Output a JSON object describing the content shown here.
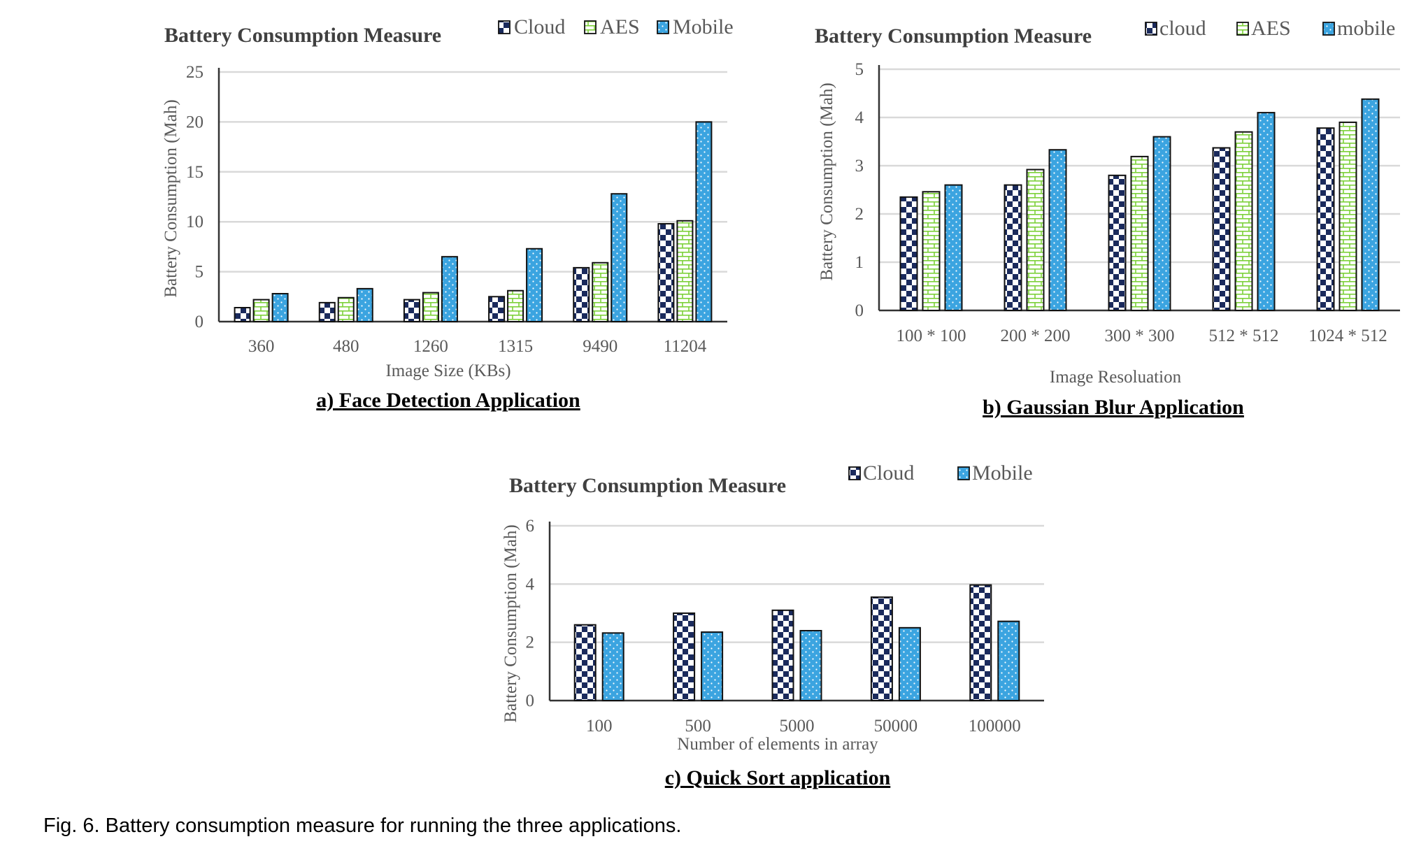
{
  "caption": "Fig. 6. Battery consumption measure for running the three applications.",
  "colors": {
    "cloud": "#1a2a5c",
    "aes": "#7dd13a",
    "mobile": "#3ba4e0",
    "grid": "#d9d9d9",
    "axis": "#333333",
    "text": "#595959",
    "title": "#404040"
  },
  "chart_data": [
    {
      "type": "bar",
      "title": "Battery Consumption Measure",
      "subtitle": "a) Face Detection Application",
      "xlabel": "Image Size (KBs)",
      "ylabel": "Battery Consumption (Mah)",
      "ylim": [
        0,
        25
      ],
      "yticks": [
        "0",
        "5",
        "10",
        "15",
        "20",
        "25"
      ],
      "grid": true,
      "legend": "top",
      "categories": [
        "360",
        "480",
        "1260",
        "1315",
        "9490",
        "11204"
      ],
      "series": [
        {
          "name": "Cloud",
          "pattern": "checker",
          "values": [
            1.4,
            1.9,
            2.2,
            2.5,
            5.4,
            9.8
          ]
        },
        {
          "name": "AES",
          "pattern": "brick",
          "values": [
            2.2,
            2.4,
            2.9,
            3.1,
            5.9,
            10.1
          ]
        },
        {
          "name": "Mobile",
          "pattern": "dots",
          "values": [
            2.8,
            3.3,
            6.5,
            7.3,
            12.8,
            20.0
          ]
        }
      ]
    },
    {
      "type": "bar",
      "title": "Battery Consumption Measure",
      "subtitle": "b) Gaussian Blur Application",
      "xlabel": "Image Resoluation",
      "ylabel": "Battery Consumption (Mah)",
      "ylim": [
        0,
        5
      ],
      "yticks": [
        "0",
        "1",
        "2",
        "3",
        "4",
        "5"
      ],
      "grid": true,
      "legend": "top",
      "categories": [
        "100 * 100",
        "200 * 200",
        "300 * 300",
        "512 * 512",
        "1024 * 512"
      ],
      "series": [
        {
          "name": "cloud",
          "pattern": "checker",
          "values": [
            2.35,
            2.6,
            2.8,
            3.37,
            3.78
          ]
        },
        {
          "name": "AES",
          "pattern": "brick",
          "values": [
            2.46,
            2.92,
            3.19,
            3.7,
            3.9
          ]
        },
        {
          "name": "mobile",
          "pattern": "dots",
          "values": [
            2.6,
            3.33,
            3.6,
            4.1,
            4.38
          ]
        }
      ]
    },
    {
      "type": "bar",
      "title": "Battery Consumption Measure",
      "subtitle": "c) Quick Sort application",
      "xlabel": "Number of elements in array",
      "ylabel": "Battery Consumption (Mah)",
      "ylim": [
        0,
        6
      ],
      "yticks": [
        "0",
        "2",
        "4",
        "6"
      ],
      "grid": true,
      "legend": "top",
      "categories": [
        "100",
        "500",
        "5000",
        "50000",
        "100000"
      ],
      "series": [
        {
          "name": "Cloud",
          "pattern": "checker",
          "values": [
            2.6,
            3.0,
            3.1,
            3.55,
            3.97
          ]
        },
        {
          "name": "Mobile",
          "pattern": "dots",
          "values": [
            2.32,
            2.35,
            2.4,
            2.5,
            2.72
          ]
        }
      ]
    }
  ]
}
